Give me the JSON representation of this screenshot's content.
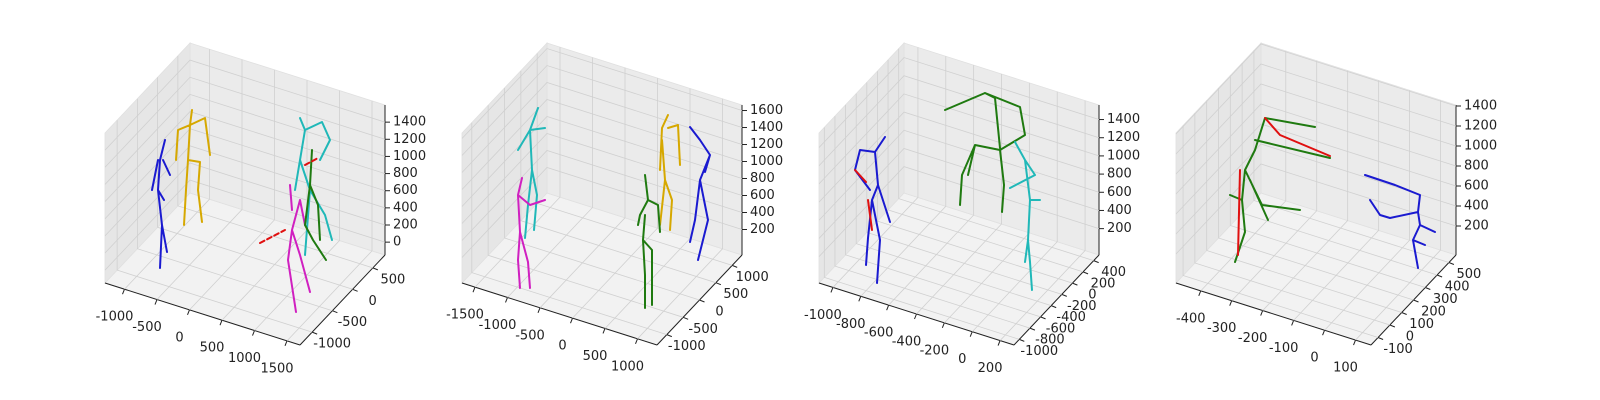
{
  "chart_data": [
    {
      "type": "skeleton3d",
      "xlim": [
        -1300,
        1700
      ],
      "xticks": [
        -1000,
        -500,
        0,
        500,
        1000,
        1500
      ],
      "ylim": [
        -1300,
        800
      ],
      "yticks": [
        -1000,
        -500,
        0,
        500
      ],
      "zlim": [
        -150,
        1600
      ],
      "zticks": [
        0,
        200,
        400,
        600,
        800,
        1000,
        1200,
        1400
      ]
    },
    {
      "type": "skeleton3d",
      "xlim": [
        -1700,
        1300
      ],
      "xticks": [
        -1500,
        -1000,
        -500,
        0,
        500,
        1000
      ],
      "ylim": [
        -1300,
        1300
      ],
      "yticks": [
        -1000,
        -500,
        0,
        500,
        1000
      ],
      "zlim": [
        -100,
        1665
      ],
      "zticks": [
        200,
        400,
        600,
        800,
        1000,
        1200,
        1400,
        1600
      ]
    },
    {
      "type": "skeleton3d",
      "xlim": [
        -1100,
        300
      ],
      "xticks": [
        -1000,
        -800,
        -600,
        -400,
        -200,
        0,
        200
      ],
      "ylim": [
        -1100,
        500
      ],
      "yticks": [
        -1000,
        -800,
        -600,
        -400,
        -200,
        0,
        200,
        400
      ],
      "zlim": [
        -90,
        1560
      ],
      "zticks": [
        200,
        400,
        600,
        800,
        1000,
        1200,
        1400
      ]
    },
    {
      "type": "skeleton3d",
      "xlim": [
        -480,
        150
      ],
      "xticks": [
        -400,
        -300,
        -200,
        -100,
        0,
        100
      ],
      "ylim": [
        -160,
        560
      ],
      "yticks": [
        -100,
        0,
        100,
        200,
        300,
        400,
        500
      ],
      "zlim": [
        -90,
        1410
      ],
      "zticks": [
        200,
        400,
        600,
        800,
        1000,
        1200,
        1400
      ]
    }
  ]
}
